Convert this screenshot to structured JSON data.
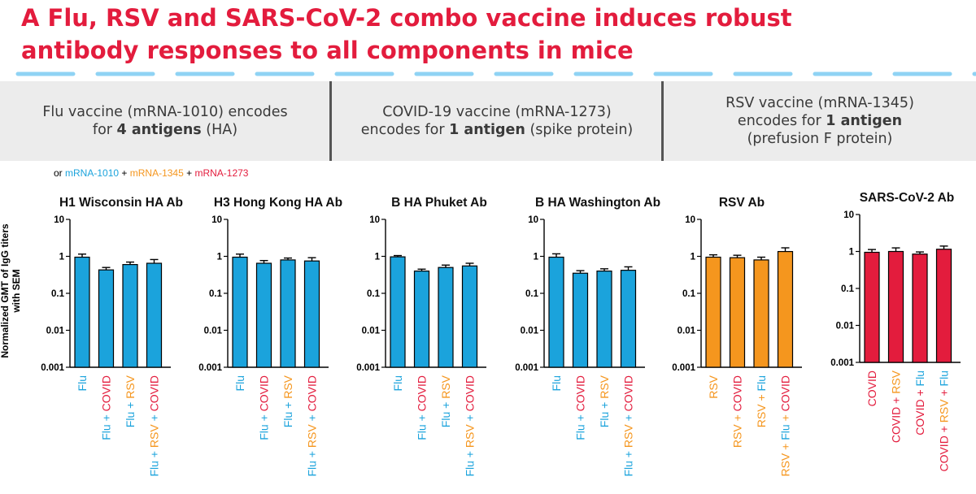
{
  "title_line1": "A Flu, RSV and SARS-CoV-2 combo vaccine induces robust",
  "title_line2": "antibody responses to all components in mice",
  "colors": {
    "title": "#e31c3d",
    "flu": "#1ba3dc",
    "rsv": "#f5961e",
    "covid": "#e31c3d",
    "dash": "#8fd3f4",
    "dash_dark": "#2a9fd6"
  },
  "banner": {
    "flu": {
      "line1": "Flu vaccine (mRNA-1010) encodes",
      "line2_pre": "for ",
      "line2_bold": "4 antigens",
      "line2_post": " (HA)"
    },
    "covid": {
      "line1": "COVID-19 vaccine (mRNA-1273)",
      "line2_pre": "encodes for ",
      "line2_bold": "1 antigen",
      "line2_post": " (spike protein)"
    },
    "rsv": {
      "line1": "RSV vaccine (mRNA-1345)",
      "line2_pre": "encodes for ",
      "line2_bold": "1 antigen",
      "line3": "(prefusion F protein)"
    }
  },
  "legend": {
    "prefix": "or ",
    "flu": "mRNA-1010",
    "plus1": " + ",
    "rsv": "mRNA-1345",
    "plus2": " + ",
    "covid": "mRNA-1273"
  },
  "y_axis_label_line1": "Normalized GMT of IgG titers",
  "y_axis_label_line2": "with SEM",
  "chart_data": [
    {
      "type": "bar",
      "title": "H1 Wisconsin HA Ab",
      "yscale": "log",
      "ylim": [
        0.001,
        10
      ],
      "yticks": [
        "10",
        "1",
        "0.1",
        "0.01",
        "0.001"
      ],
      "bar_color": "flu",
      "categories": [
        [
          {
            "t": "Flu",
            "c": "flu"
          }
        ],
        [
          {
            "t": "Flu",
            "c": "flu"
          },
          {
            "t": " + ",
            "c": "flu"
          },
          {
            "t": "COVID",
            "c": "covid"
          }
        ],
        [
          {
            "t": "Flu",
            "c": "flu"
          },
          {
            "t": " + ",
            "c": "flu"
          },
          {
            "t": "RSV",
            "c": "rsv"
          }
        ],
        [
          {
            "t": "Flu",
            "c": "flu"
          },
          {
            "t": " + ",
            "c": "flu"
          },
          {
            "t": "RSV",
            "c": "rsv"
          },
          {
            "t": " + ",
            "c": "flu"
          },
          {
            "t": "COVID",
            "c": "covid"
          }
        ]
      ],
      "values": [
        0.95,
        0.43,
        0.6,
        0.65
      ],
      "sem": [
        0.2,
        0.07,
        0.1,
        0.17
      ]
    },
    {
      "type": "bar",
      "title": "H3 Hong Kong HA Ab",
      "yscale": "log",
      "ylim": [
        0.001,
        10
      ],
      "yticks": [
        "10",
        "1",
        "0.1",
        "0.01",
        "0.001"
      ],
      "bar_color": "flu",
      "categories": [
        [
          {
            "t": "Flu",
            "c": "flu"
          }
        ],
        [
          {
            "t": "Flu",
            "c": "flu"
          },
          {
            "t": " + ",
            "c": "flu"
          },
          {
            "t": "COVID",
            "c": "covid"
          }
        ],
        [
          {
            "t": "Flu",
            "c": "flu"
          },
          {
            "t": " + ",
            "c": "flu"
          },
          {
            "t": "RSV",
            "c": "rsv"
          }
        ],
        [
          {
            "t": "Flu",
            "c": "flu"
          },
          {
            "t": " + ",
            "c": "flu"
          },
          {
            "t": "RSV",
            "c": "rsv"
          },
          {
            "t": " + ",
            "c": "flu"
          },
          {
            "t": "COVID",
            "c": "covid"
          }
        ]
      ],
      "values": [
        0.95,
        0.65,
        0.8,
        0.75
      ],
      "sem": [
        0.2,
        0.12,
        0.1,
        0.17
      ]
    },
    {
      "type": "bar",
      "title": "B HA Phuket Ab",
      "yscale": "log",
      "ylim": [
        0.001,
        10
      ],
      "yticks": [
        "10",
        "1",
        "0.1",
        "0.01",
        "0.001"
      ],
      "bar_color": "flu",
      "categories": [
        [
          {
            "t": "Flu",
            "c": "flu"
          }
        ],
        [
          {
            "t": "Flu",
            "c": "flu"
          },
          {
            "t": " + ",
            "c": "flu"
          },
          {
            "t": "COVID",
            "c": "covid"
          }
        ],
        [
          {
            "t": "Flu",
            "c": "flu"
          },
          {
            "t": " + ",
            "c": "flu"
          },
          {
            "t": "RSV",
            "c": "rsv"
          }
        ],
        [
          {
            "t": "Flu",
            "c": "flu"
          },
          {
            "t": " + ",
            "c": "flu"
          },
          {
            "t": "RSV",
            "c": "rsv"
          },
          {
            "t": " + ",
            "c": "flu"
          },
          {
            "t": "COVID",
            "c": "covid"
          }
        ]
      ],
      "values": [
        0.97,
        0.4,
        0.5,
        0.55
      ],
      "sem": [
        0.08,
        0.05,
        0.08,
        0.1
      ]
    },
    {
      "type": "bar",
      "title": "B HA Washington Ab",
      "yscale": "log",
      "ylim": [
        0.001,
        10
      ],
      "yticks": [
        "10",
        "1",
        "0.1",
        "0.01",
        "0.001"
      ],
      "bar_color": "flu",
      "categories": [
        [
          {
            "t": "Flu",
            "c": "flu"
          }
        ],
        [
          {
            "t": "Flu",
            "c": "flu"
          },
          {
            "t": " + ",
            "c": "flu"
          },
          {
            "t": "COVID",
            "c": "covid"
          }
        ],
        [
          {
            "t": "Flu",
            "c": "flu"
          },
          {
            "t": " + ",
            "c": "flu"
          },
          {
            "t": "RSV",
            "c": "rsv"
          }
        ],
        [
          {
            "t": "Flu",
            "c": "flu"
          },
          {
            "t": " + ",
            "c": "flu"
          },
          {
            "t": "RSV",
            "c": "rsv"
          },
          {
            "t": " + ",
            "c": "flu"
          },
          {
            "t": "COVID",
            "c": "covid"
          }
        ]
      ],
      "values": [
        0.95,
        0.35,
        0.4,
        0.42
      ],
      "sem": [
        0.22,
        0.06,
        0.06,
        0.1
      ]
    },
    {
      "type": "bar",
      "title": "RSV Ab",
      "yscale": "log",
      "ylim": [
        0.001,
        10
      ],
      "yticks": [
        "10",
        "1",
        "0.1",
        "0.01",
        "0.001"
      ],
      "bar_color": "rsv",
      "categories": [
        [
          {
            "t": "RSV",
            "c": "rsv"
          }
        ],
        [
          {
            "t": "RSV",
            "c": "rsv"
          },
          {
            "t": " + ",
            "c": "rsv"
          },
          {
            "t": "COVID",
            "c": "covid"
          }
        ],
        [
          {
            "t": "RSV",
            "c": "rsv"
          },
          {
            "t": " + ",
            "c": "rsv"
          },
          {
            "t": "Flu",
            "c": "flu"
          }
        ],
        [
          {
            "t": "RSV",
            "c": "rsv"
          },
          {
            "t": " + ",
            "c": "rsv"
          },
          {
            "t": "Flu",
            "c": "flu"
          },
          {
            "t": " + ",
            "c": "rsv"
          },
          {
            "t": "COVID",
            "c": "covid"
          }
        ]
      ],
      "values": [
        0.95,
        0.92,
        0.8,
        1.35
      ],
      "sem": [
        0.15,
        0.15,
        0.15,
        0.35
      ]
    },
    {
      "type": "bar",
      "title": "SARS-CoV-2 Ab",
      "yscale": "log",
      "ylim": [
        0.001,
        10
      ],
      "yticks": [
        "10",
        "1",
        "0.1",
        "0.01",
        "0.001"
      ],
      "bar_color": "covid",
      "categories": [
        [
          {
            "t": "COVID",
            "c": "covid"
          }
        ],
        [
          {
            "t": "COVID",
            "c": "covid"
          },
          {
            "t": " + ",
            "c": "covid"
          },
          {
            "t": "RSV",
            "c": "rsv"
          }
        ],
        [
          {
            "t": "COVID",
            "c": "covid"
          },
          {
            "t": " + ",
            "c": "covid"
          },
          {
            "t": "Flu",
            "c": "flu"
          }
        ],
        [
          {
            "t": "COVID",
            "c": "covid"
          },
          {
            "t": " + ",
            "c": "covid"
          },
          {
            "t": "RSV",
            "c": "rsv"
          },
          {
            "t": " + ",
            "c": "covid"
          },
          {
            "t": "Flu",
            "c": "flu"
          }
        ]
      ],
      "values": [
        0.95,
        1.0,
        0.85,
        1.15
      ],
      "sem": [
        0.18,
        0.25,
        0.12,
        0.25
      ]
    }
  ]
}
